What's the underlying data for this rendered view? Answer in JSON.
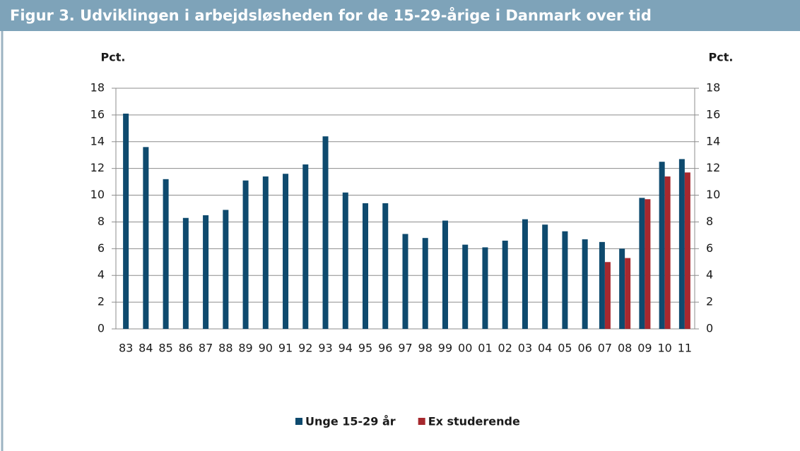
{
  "chart_data": {
    "type": "bar",
    "title": "Figur 3. Udviklingen i arbejdsløsheden for de 15-29-årige i Danmark over tid",
    "y_label": "Pct.",
    "y2_label": "Pct.",
    "categories": [
      "83",
      "84",
      "85",
      "86",
      "87",
      "88",
      "89",
      "90",
      "91",
      "92",
      "93",
      "94",
      "95",
      "96",
      "97",
      "98",
      "99",
      "00",
      "01",
      "02",
      "03",
      "04",
      "05",
      "06",
      "07",
      "08",
      "09",
      "10",
      "11"
    ],
    "series": [
      {
        "name": "Unge 15-29 år",
        "color": "#0e4a6e",
        "values": [
          16.1,
          13.6,
          11.2,
          8.3,
          8.5,
          8.9,
          11.1,
          11.4,
          11.6,
          12.3,
          14.4,
          10.2,
          9.4,
          9.4,
          7.1,
          6.8,
          8.1,
          6.3,
          6.1,
          6.6,
          8.2,
          7.8,
          7.3,
          6.7,
          6.5,
          6.0,
          9.8,
          12.5,
          12.7
        ]
      },
      {
        "name": "Ex studerende",
        "color": "#a6282e",
        "values": [
          null,
          null,
          null,
          null,
          null,
          null,
          null,
          null,
          null,
          null,
          null,
          null,
          null,
          null,
          null,
          null,
          null,
          null,
          null,
          null,
          null,
          null,
          null,
          null,
          5.0,
          5.3,
          9.7,
          11.4,
          11.7
        ]
      }
    ],
    "ylim": [
      0,
      18
    ],
    "yticks": [
      0,
      2,
      4,
      6,
      8,
      10,
      12,
      14,
      16,
      18
    ],
    "y2lim": [
      0,
      18
    ],
    "y2ticks": [
      0,
      2,
      4,
      6,
      8,
      10,
      12,
      14,
      16,
      18
    ],
    "grid": true,
    "legend": "bottom"
  }
}
